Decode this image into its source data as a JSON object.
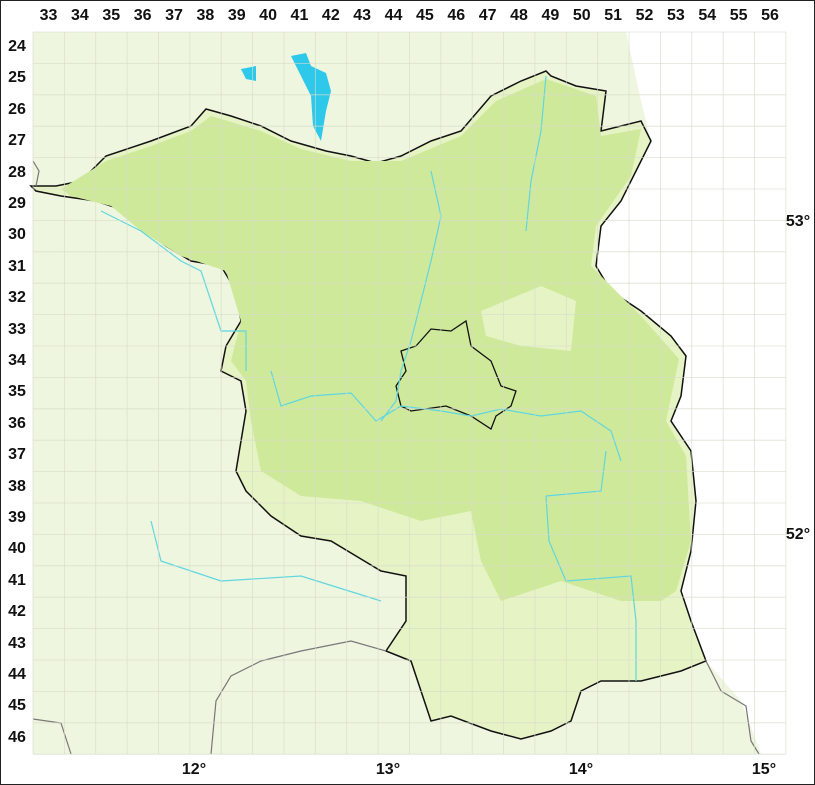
{
  "map": {
    "grid_columns": [
      "33",
      "34",
      "35",
      "36",
      "37",
      "38",
      "39",
      "40",
      "41",
      "42",
      "43",
      "44",
      "45",
      "46",
      "47",
      "48",
      "49",
      "50",
      "51",
      "52",
      "53",
      "54",
      "55",
      "56"
    ],
    "grid_rows": [
      "24",
      "25",
      "26",
      "27",
      "28",
      "29",
      "30",
      "31",
      "32",
      "33",
      "34",
      "35",
      "36",
      "37",
      "38",
      "39",
      "40",
      "41",
      "42",
      "43",
      "44",
      "45",
      "46"
    ],
    "longitude_labels": [
      "12°",
      "13°",
      "14°",
      "15°"
    ],
    "latitude_labels": [
      "53°",
      "52°"
    ],
    "colors": {
      "background_land": "#eef6df",
      "state_area": "#e6f3c4",
      "dense_area": "#cfe99a",
      "outside_east": "#ffffff",
      "border": "#111111",
      "rivers": "#5fd6e0",
      "lakes": "#2ec8ea",
      "grid": "#d8dccb"
    }
  }
}
